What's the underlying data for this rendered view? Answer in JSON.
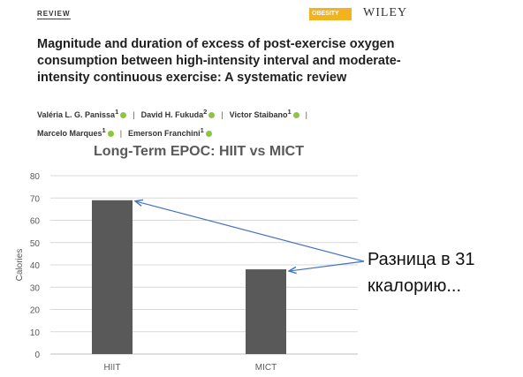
{
  "header": {
    "section_label": "REVIEW",
    "journal_logo": "OBESITY",
    "publisher": "WILEY"
  },
  "paper": {
    "title": "Magnitude and duration of excess of post-exercise oxygen consumption between high-intensity interval and moderate-intensity continuous exercise: A systematic review",
    "authors": [
      {
        "name": "Valéria L. G. Panissa",
        "sup": "1"
      },
      {
        "name": "David H. Fukuda",
        "sup": "2"
      },
      {
        "name": "Victor Staibano",
        "sup": "1"
      },
      {
        "name": "Marcelo Marques",
        "sup": "1"
      },
      {
        "name": "Emerson Franchini",
        "sup": "1"
      }
    ],
    "separator": "|"
  },
  "chart_data": {
    "type": "bar",
    "title": "Long-Term EPOC: HIIT vs MICT",
    "categories": [
      "HIIT",
      "MICT"
    ],
    "values": [
      69,
      38
    ],
    "xlabel": "",
    "ylabel": "Calories",
    "ylim": [
      0,
      80
    ],
    "yticks": [
      0,
      10,
      20,
      30,
      40,
      50,
      60,
      70,
      80
    ],
    "grid": true,
    "legend": "none",
    "bar_color": "#595959",
    "grid_color": "#d9d9d9",
    "arrow_color": "#4472c4"
  },
  "annotation": {
    "text": "Разница в 31 ккалорию..."
  }
}
